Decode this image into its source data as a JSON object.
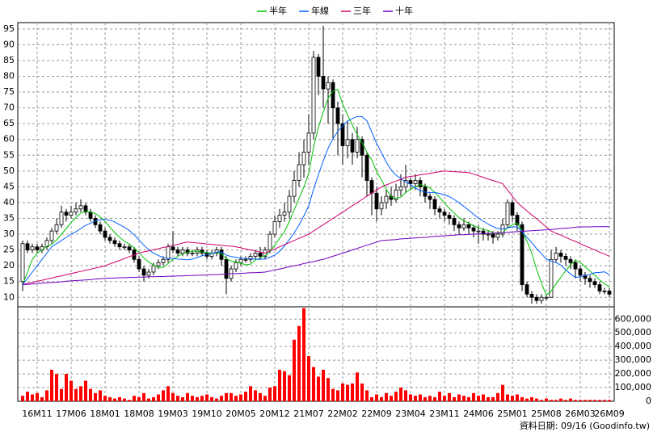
{
  "chart_data": {
    "type": "candlestick",
    "categories": [
      null,
      null,
      null,
      "16M11",
      null,
      null,
      null,
      null,
      null,
      null,
      "17M06",
      null,
      null,
      null,
      null,
      null,
      null,
      "18M01",
      null,
      null,
      null,
      null,
      null,
      null,
      "18M08",
      null,
      null,
      null,
      null,
      null,
      null,
      "19M03",
      null,
      null,
      null,
      null,
      null,
      null,
      "19M10",
      null,
      null,
      null,
      null,
      null,
      null,
      "20M05",
      null,
      null,
      null,
      null,
      null,
      null,
      "20M12",
      null,
      null,
      null,
      null,
      null,
      null,
      "21M07",
      null,
      null,
      null,
      null,
      null,
      null,
      "22M02",
      null,
      null,
      null,
      null,
      null,
      null,
      "22M09",
      null,
      null,
      null,
      null,
      null,
      null,
      "23M04",
      null,
      null,
      null,
      null,
      null,
      null,
      "23M11",
      null,
      null,
      null,
      null,
      null,
      null,
      "24M06",
      null,
      null,
      null,
      null,
      null,
      null,
      "25M01",
      null,
      null,
      null,
      null,
      null,
      null,
      "25M08",
      null,
      null,
      null,
      null,
      null,
      null,
      "26M03",
      null,
      null,
      null,
      null,
      null,
      "26M09"
    ],
    "open": [
      15,
      27,
      25,
      26,
      25,
      26,
      28,
      31,
      33,
      37,
      36,
      37,
      38,
      39,
      37,
      35,
      33,
      31,
      29,
      28,
      27,
      26,
      26,
      25,
      22,
      19,
      17,
      18,
      20,
      21,
      22,
      26,
      25,
      24,
      25,
      24,
      24,
      25,
      24,
      23,
      24,
      25,
      22,
      16,
      19,
      21,
      22,
      22,
      23,
      24,
      23,
      25,
      30,
      34,
      36,
      37,
      42,
      47,
      52,
      56,
      62,
      86,
      80,
      76,
      78,
      70,
      65,
      58,
      60,
      56,
      60,
      55,
      47,
      43,
      38,
      40,
      42,
      41,
      44,
      45,
      47,
      46,
      47,
      45,
      42,
      41,
      38,
      37,
      36,
      35,
      33,
      32,
      33,
      32,
      31,
      31,
      30,
      30,
      29,
      30,
      33,
      40,
      36,
      33,
      14,
      11,
      10,
      9,
      10,
      10,
      22,
      24,
      23,
      22,
      21,
      19,
      17,
      16,
      15,
      14,
      12,
      12
    ],
    "high": [
      28,
      28,
      27,
      27,
      27,
      29,
      32,
      35,
      39,
      38,
      39,
      40,
      41,
      40,
      38,
      36,
      34,
      32,
      30,
      29,
      28,
      27,
      27,
      26,
      23,
      20,
      19,
      21,
      22,
      23,
      27,
      31,
      26,
      26,
      26,
      25,
      26,
      26,
      25,
      25,
      26,
      26,
      23,
      20,
      22,
      23,
      23,
      24,
      25,
      26,
      26,
      31,
      36,
      38,
      40,
      44,
      50,
      56,
      60,
      68,
      88,
      87,
      96,
      80,
      79,
      72,
      68,
      66,
      62,
      64,
      61,
      56,
      48,
      45,
      42,
      44,
      45,
      46,
      49,
      52,
      48,
      49,
      48,
      46,
      43,
      42,
      39,
      38,
      37,
      36,
      34,
      35,
      34,
      33,
      33,
      32,
      31,
      31,
      31,
      35,
      41,
      41,
      37,
      34,
      15,
      12,
      11,
      11,
      11,
      25,
      26,
      25,
      24,
      23,
      22,
      20,
      18,
      17,
      16,
      15,
      13,
      13
    ],
    "low": [
      12,
      24,
      24,
      24,
      24,
      25,
      27,
      30,
      32,
      34,
      35,
      36,
      37,
      36,
      34,
      32,
      30,
      28,
      27,
      26,
      25,
      25,
      24,
      21,
      18,
      15,
      16,
      17,
      19,
      20,
      21,
      24,
      23,
      23,
      23,
      23,
      23,
      23,
      22,
      22,
      23,
      20,
      11,
      15,
      18,
      20,
      21,
      21,
      22,
      22,
      22,
      24,
      29,
      32,
      34,
      35,
      40,
      45,
      48,
      52,
      60,
      74,
      70,
      65,
      60,
      55,
      52,
      54,
      52,
      54,
      48,
      42,
      36,
      34,
      36,
      38,
      39,
      40,
      42,
      43,
      44,
      44,
      42,
      40,
      38,
      36,
      35,
      34,
      33,
      31,
      30,
      31,
      30,
      29,
      27,
      28,
      28,
      27,
      28,
      29,
      32,
      34,
      31,
      12,
      10,
      8,
      8,
      8,
      9,
      10,
      21,
      21,
      20,
      19,
      16,
      15,
      14,
      13,
      13,
      11,
      11,
      10
    ],
    "close": [
      27,
      25,
      26,
      25,
      26,
      28,
      31,
      33,
      37,
      36,
      37,
      38,
      39,
      37,
      35,
      33,
      31,
      29,
      28,
      27,
      26,
      26,
      25,
      22,
      19,
      17,
      18,
      20,
      21,
      22,
      26,
      25,
      24,
      25,
      24,
      24,
      25,
      24,
      23,
      24,
      25,
      22,
      16,
      19,
      21,
      22,
      22,
      23,
      24,
      23,
      25,
      30,
      34,
      36,
      37,
      42,
      47,
      52,
      56,
      62,
      86,
      80,
      76,
      78,
      70,
      65,
      58,
      60,
      56,
      60,
      55,
      47,
      43,
      38,
      40,
      42,
      41,
      44,
      45,
      47,
      46,
      47,
      45,
      42,
      41,
      38,
      37,
      36,
      35,
      33,
      32,
      33,
      32,
      31,
      31,
      30,
      30,
      29,
      30,
      33,
      40,
      36,
      33,
      14,
      11,
      10,
      9,
      10,
      10,
      22,
      24,
      23,
      22,
      21,
      19,
      17,
      16,
      15,
      14,
      12,
      12,
      11
    ],
    "up_color": "#ffffff",
    "down_color": "#000000",
    "series": [
      {
        "name": "半年",
        "color": "#00c000",
        "values": [
          14,
          18,
          22,
          24,
          25,
          26.2,
          26.8,
          28.2,
          30,
          31.8,
          33.7,
          35.3,
          36.7,
          37.3,
          37,
          36.5,
          35.5,
          34,
          32.2,
          30.5,
          29,
          27.8,
          26.8,
          25.7,
          24.2,
          22.5,
          21.2,
          20.2,
          19.5,
          19.5,
          20.7,
          22,
          23,
          23.8,
          24.3,
          24.7,
          24.5,
          24.3,
          24.2,
          24,
          24.2,
          23.8,
          22.3,
          21.5,
          21.2,
          20.8,
          20.3,
          20.5,
          21.8,
          22.5,
          23.2,
          24.5,
          26.5,
          28.7,
          30.8,
          34,
          37.7,
          41.3,
          45,
          49.3,
          57.5,
          63.8,
          68.7,
          73,
          75.3,
          75.8,
          71.2,
          67.8,
          64.5,
          61.5,
          59,
          56,
          53.5,
          49.8,
          47.2,
          44.2,
          41.8,
          41.3,
          41.7,
          43.2,
          44.2,
          45,
          45.7,
          45.3,
          44.7,
          43.2,
          41.7,
          39.8,
          38.2,
          36.7,
          35.2,
          34.3,
          33.5,
          32.7,
          32,
          31.5,
          31.2,
          30.5,
          30.2,
          30.5,
          32,
          33,
          33.5,
          31,
          27.8,
          24,
          18.8,
          14.5,
          10.7,
          12,
          14.2,
          16.3,
          18.5,
          20.3,
          21.8,
          21,
          19.7,
          18.3,
          17,
          15.5,
          14.3,
          13.3
        ]
      },
      {
        "name": "年線",
        "color": "#0060ff",
        "values": [
          14,
          16,
          18,
          20,
          22,
          24,
          26,
          27,
          28,
          29,
          30,
          30.8,
          31.8,
          32.8,
          33.5,
          34.2,
          34.6,
          34.7,
          34.4,
          33.9,
          33,
          32.2,
          31.2,
          29.8,
          28.2,
          26.5,
          25.1,
          24,
          23.2,
          22.6,
          22.4,
          22.3,
          22.1,
          22,
          21.9,
          22.1,
          22.6,
          23.2,
          23.6,
          23.9,
          24.3,
          24.3,
          23.4,
          22.9,
          22.7,
          22.4,
          22.3,
          22.2,
          22.1,
          22,
          22.2,
          22.7,
          23.4,
          24.6,
          26.3,
          28.3,
          30.4,
          32.9,
          35.8,
          39,
          44.2,
          48.9,
          53.2,
          57.2,
          60.2,
          62.6,
          64.3,
          65.8,
          66.6,
          67.3,
          67.2,
          65.9,
          62.3,
          58.8,
          55.8,
          52.8,
          50.4,
          48.7,
          47.6,
          46.5,
          45.7,
          44.6,
          43.8,
          43.3,
          43.2,
          43.2,
          42.9,
          42.4,
          41.9,
          41,
          39.9,
          38.8,
          37.6,
          36.3,
          35.1,
          34.1,
          33.2,
          32.4,
          31.8,
          31.6,
          32,
          32.3,
          32.3,
          30.8,
          29,
          27.3,
          25.4,
          23.8,
          22.1,
          21.5,
          21,
          20.2,
          18.7,
          17.4,
          16.3,
          16.5,
          16.9,
          17.3,
          17.8,
          17.9,
          18.1,
          17.2
        ]
      },
      {
        "name": "三年",
        "color": "#d0006a",
        "values": [
          14,
          14.4,
          14.7,
          15.1,
          15.4,
          15.8,
          16.1,
          16.5,
          16.8,
          17.2,
          17.5,
          17.9,
          18.2,
          18.6,
          18.9,
          19.3,
          19.6,
          20,
          20.6,
          21.1,
          21.7,
          22.3,
          22.9,
          23.4,
          24,
          24.4,
          24.7,
          25.1,
          25.4,
          25.8,
          26.1,
          26.5,
          26.8,
          27.2,
          27.5,
          27.4,
          27.2,
          27.1,
          26.9,
          26.8,
          26.6,
          26.5,
          26.3,
          26.2,
          26,
          25.7,
          25.3,
          25,
          24.7,
          24.3,
          24,
          24.7,
          25.3,
          26,
          26.7,
          27.3,
          28,
          28.7,
          29.3,
          30,
          31,
          32,
          33,
          34,
          35,
          36,
          37,
          38,
          39,
          40,
          41,
          42,
          43,
          44,
          45,
          45.6,
          46.2,
          46.8,
          47.4,
          48,
          48.3,
          48.5,
          48.8,
          49,
          49.3,
          49.5,
          49.8,
          50,
          49.9,
          49.8,
          49.7,
          49.6,
          49.5,
          49,
          48.5,
          48,
          47.5,
          47,
          46.5,
          46,
          44,
          42,
          40,
          38.7,
          37.4,
          36.1,
          34.9,
          33.6,
          32.3,
          31,
          30.3,
          29.7,
          29,
          28.3,
          27.7,
          27,
          26.3,
          25.7,
          25,
          24.3,
          23.7,
          23
        ]
      },
      {
        "name": "十年",
        "color": "#7000c0",
        "values": [
          14,
          14.1,
          14.2,
          14.4,
          14.5,
          14.6,
          14.7,
          14.8,
          14.9,
          15.1,
          15.2,
          15.3,
          15.4,
          15.5,
          15.6,
          15.8,
          15.9,
          16,
          16.1,
          16.1,
          16.2,
          16.2,
          16.3,
          16.3,
          16.4,
          16.4,
          16.5,
          16.5,
          16.6,
          16.6,
          16.7,
          16.7,
          16.8,
          16.8,
          16.9,
          16.9,
          17,
          17,
          17.1,
          17.2,
          17.2,
          17.3,
          17.4,
          17.5,
          17.5,
          17.6,
          17.7,
          17.8,
          17.8,
          17.9,
          18,
          18.3,
          18.7,
          19,
          19.3,
          19.7,
          20,
          20.3,
          20.7,
          21,
          21.3,
          21.7,
          22,
          22.5,
          23,
          23.5,
          24,
          24.5,
          25,
          25.5,
          26,
          26.5,
          27,
          27.5,
          28,
          28.1,
          28.2,
          28.3,
          28.5,
          28.6,
          28.7,
          28.8,
          28.9,
          29,
          29.2,
          29.3,
          29.4,
          29.5,
          29.6,
          29.7,
          29.8,
          29.8,
          29.9,
          30,
          30.1,
          30.2,
          30.2,
          30.3,
          30.4,
          30.5,
          30.6,
          30.7,
          30.8,
          30.9,
          31,
          31.1,
          31.2,
          31.3,
          31.4,
          31.5,
          31.6,
          31.8,
          31.9,
          32,
          32.2,
          32.3,
          32.3,
          32.3,
          32.4,
          32.4,
          32.4,
          32.4
        ]
      }
    ],
    "volume": {
      "color": "#ff0000",
      "axis": "y2",
      "values": [
        40000,
        70000,
        50000,
        60000,
        30000,
        80000,
        230000,
        200000,
        90000,
        200000,
        150000,
        90000,
        110000,
        150000,
        90000,
        60000,
        80000,
        40000,
        30000,
        20000,
        30000,
        20000,
        10000,
        40000,
        30000,
        60000,
        20000,
        30000,
        50000,
        80000,
        110000,
        60000,
        40000,
        30000,
        60000,
        40000,
        30000,
        40000,
        50000,
        30000,
        20000,
        40000,
        60000,
        60000,
        40000,
        50000,
        70000,
        110000,
        80000,
        60000,
        40000,
        100000,
        110000,
        230000,
        220000,
        190000,
        450000,
        550000,
        680000,
        330000,
        250000,
        180000,
        230000,
        170000,
        90000,
        80000,
        130000,
        120000,
        130000,
        210000,
        130000,
        80000,
        30000,
        50000,
        30000,
        60000,
        40000,
        70000,
        100000,
        80000,
        50000,
        40000,
        50000,
        30000,
        40000,
        30000,
        70000,
        40000,
        60000,
        30000,
        50000,
        40000,
        30000,
        60000,
        40000,
        50000,
        30000,
        30000,
        60000,
        120000,
        50000,
        40000,
        50000,
        30000,
        20000,
        30000,
        20000,
        10000,
        20000,
        10000,
        10000,
        20000,
        10000,
        20000,
        10000,
        10000,
        10000,
        10000,
        10000,
        10000,
        10000,
        10000
      ]
    },
    "ylim": [
      7,
      97
    ],
    "yticks": [
      10,
      15,
      20,
      25,
      30,
      35,
      40,
      45,
      50,
      55,
      60,
      65,
      70,
      75,
      80,
      85,
      90,
      95
    ],
    "y2lim": [
      0,
      690000
    ],
    "y2ticks": [
      0,
      {
        "value": 100000,
        "label": "100,000"
      },
      {
        "value": 200000,
        "label": "200,000"
      },
      {
        "value": 300000,
        "label": "300,000"
      },
      {
        "value": 400000,
        "label": "400,000"
      },
      {
        "value": 500000,
        "label": "500,000"
      },
      {
        "value": 600000,
        "label": "600,000"
      }
    ],
    "grid": true,
    "footnote": "資料日期: 09/16 (Goodinfo.tw)"
  }
}
